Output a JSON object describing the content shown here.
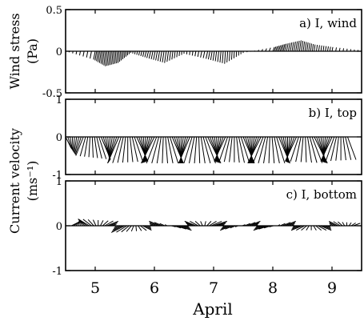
{
  "chart_data": {
    "type": "stick-plot",
    "xlabel": "April",
    "x_ticks": [
      5,
      6,
      7,
      8,
      9
    ],
    "xlim": [
      4.5,
      9.5
    ],
    "panels": [
      {
        "id": "a",
        "label": "a) I, wind",
        "ylabel": "Wind stress",
        "ylabel2": "(Pa)",
        "ylim": [
          -0.5,
          0.5
        ],
        "yticks": [
          0.5,
          0,
          -0.5
        ],
        "yticklabels": [
          "0.5",
          "0",
          "-0.5"
        ],
        "points": [
          {
            "t": 4.5,
            "u": 0.0,
            "v": 0.0
          },
          {
            "t": 5.0,
            "u": -0.02,
            "v": -0.1
          },
          {
            "t": 5.2,
            "u": -0.02,
            "v": -0.18
          },
          {
            "t": 5.4,
            "u": -0.01,
            "v": -0.14
          },
          {
            "t": 5.6,
            "u": 0.0,
            "v": -0.02
          },
          {
            "t": 5.9,
            "u": -0.02,
            "v": -0.08
          },
          {
            "t": 6.2,
            "u": -0.02,
            "v": -0.14
          },
          {
            "t": 6.5,
            "u": 0.0,
            "v": -0.03
          },
          {
            "t": 6.9,
            "u": -0.02,
            "v": -0.09
          },
          {
            "t": 7.2,
            "u": -0.01,
            "v": -0.15
          },
          {
            "t": 7.5,
            "u": 0.0,
            "v": -0.02
          },
          {
            "t": 8.0,
            "u": 0.02,
            "v": 0.05
          },
          {
            "t": 8.2,
            "u": 0.02,
            "v": 0.09
          },
          {
            "t": 8.45,
            "u": 0.02,
            "v": 0.13
          },
          {
            "t": 8.7,
            "u": 0.01,
            "v": 0.08
          },
          {
            "t": 9.0,
            "u": 0.01,
            "v": 0.05
          },
          {
            "t": 9.5,
            "u": 0.0,
            "v": 0.01
          }
        ]
      },
      {
        "id": "b",
        "label": "b) I, top",
        "ylabel": "",
        "ylim": [
          -1,
          1
        ],
        "yticks": [
          1,
          0,
          -1
        ],
        "yticklabels": [
          "1",
          "0",
          "-1"
        ],
        "points": [
          {
            "t": 4.5,
            "u": 0.15,
            "v": -0.3
          },
          {
            "t": 4.8,
            "u": -0.2,
            "v": -0.5
          },
          {
            "t": 5.1,
            "u": 0.25,
            "v": -0.6
          },
          {
            "t": 5.4,
            "u": -0.3,
            "v": -0.7
          },
          {
            "t": 5.7,
            "u": 0.3,
            "v": -0.65
          },
          {
            "t": 6.0,
            "u": -0.35,
            "v": -0.7
          },
          {
            "t": 6.3,
            "u": 0.3,
            "v": -0.7
          },
          {
            "t": 6.6,
            "u": -0.3,
            "v": -0.7
          },
          {
            "t": 6.9,
            "u": 0.35,
            "v": -0.7
          },
          {
            "t": 7.2,
            "u": -0.3,
            "v": -0.65
          },
          {
            "t": 7.5,
            "u": 0.3,
            "v": -0.7
          },
          {
            "t": 7.8,
            "u": -0.35,
            "v": -0.7
          },
          {
            "t": 8.1,
            "u": 0.3,
            "v": -0.7
          },
          {
            "t": 8.4,
            "u": -0.3,
            "v": -0.65
          },
          {
            "t": 8.7,
            "u": 0.35,
            "v": -0.7
          },
          {
            "t": 9.0,
            "u": -0.3,
            "v": -0.65
          },
          {
            "t": 9.3,
            "u": 0.3,
            "v": -0.6
          }
        ]
      },
      {
        "id": "c",
        "label": "c) I, bottom",
        "ylabel": "Current velocity",
        "ylabel2": "(ms⁻¹)",
        "ylim": [
          -1,
          1
        ],
        "yticks": [
          1,
          0,
          -1
        ],
        "yticklabels": [
          "1",
          "0",
          "-1"
        ],
        "points": [
          {
            "t": 4.6,
            "u": 0.2,
            "v": 0.1
          },
          {
            "t": 4.9,
            "u": -0.25,
            "v": 0.15
          },
          {
            "t": 5.2,
            "u": 0.25,
            "v": 0.1
          },
          {
            "t": 5.5,
            "u": -0.3,
            "v": -0.15
          },
          {
            "t": 5.8,
            "u": 0.2,
            "v": -0.1
          },
          {
            "t": 6.1,
            "u": -0.25,
            "v": 0.1
          },
          {
            "t": 6.4,
            "u": 0.3,
            "v": -0.1
          },
          {
            "t": 6.7,
            "u": -0.25,
            "v": 0.1
          },
          {
            "t": 7.0,
            "u": 0.3,
            "v": 0.1
          },
          {
            "t": 7.3,
            "u": -0.25,
            "v": -0.1
          },
          {
            "t": 7.6,
            "u": 0.25,
            "v": 0.1
          },
          {
            "t": 7.9,
            "u": -0.3,
            "v": -0.1
          },
          {
            "t": 8.2,
            "u": 0.25,
            "v": 0.1
          },
          {
            "t": 8.5,
            "u": -0.25,
            "v": -0.1
          },
          {
            "t": 8.8,
            "u": 0.25,
            "v": -0.1
          },
          {
            "t": 9.1,
            "u": -0.2,
            "v": 0.1
          },
          {
            "t": 9.4,
            "u": 0.2,
            "v": 0.05
          }
        ]
      }
    ]
  }
}
